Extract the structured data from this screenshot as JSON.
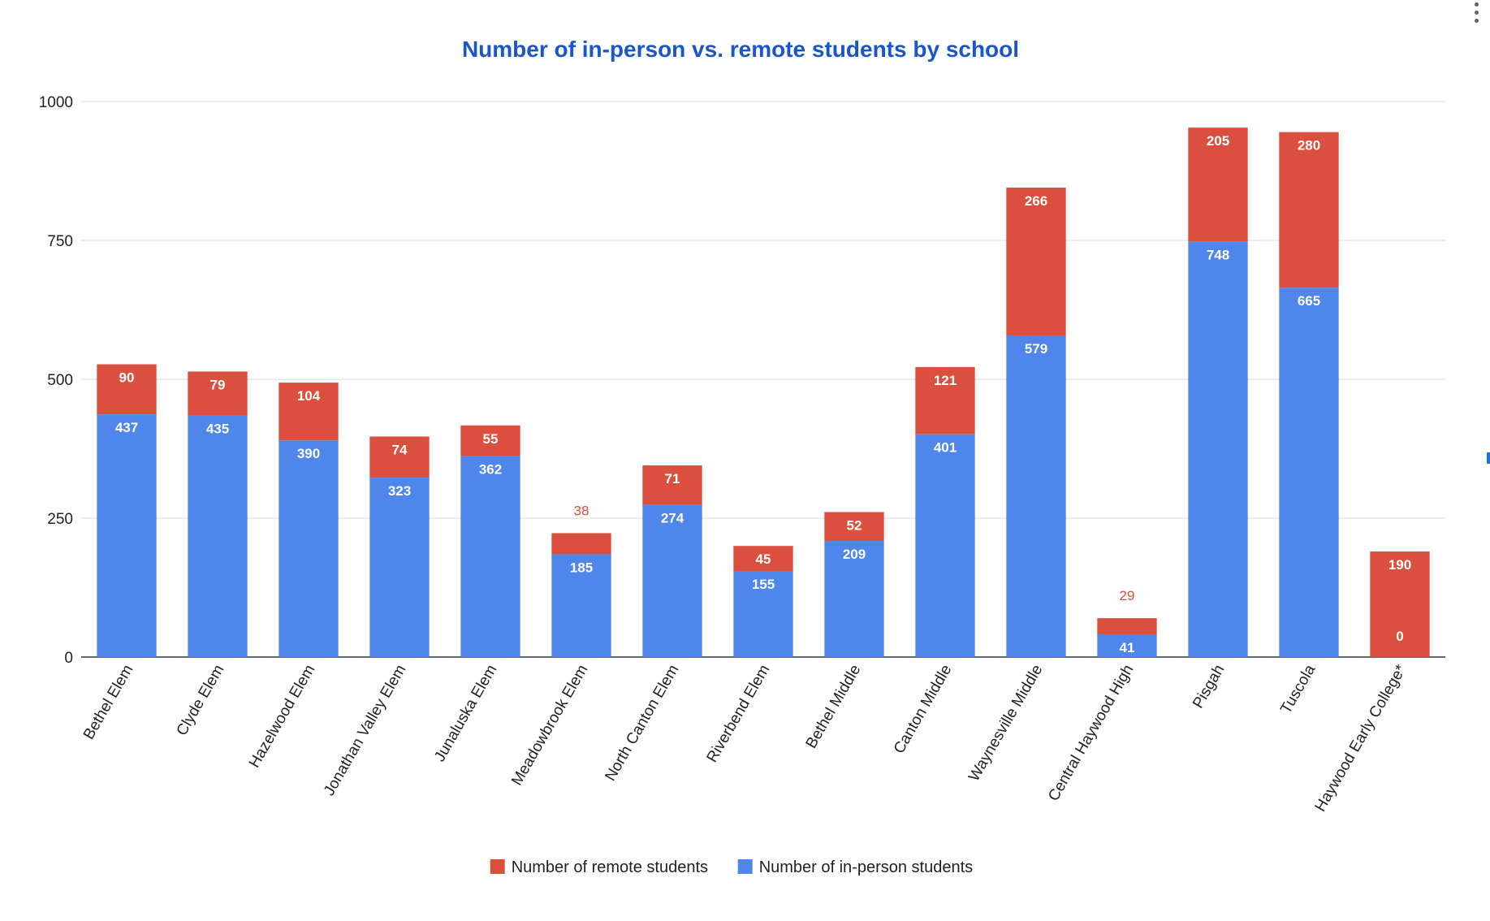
{
  "colors": {
    "title": "#1a56c8",
    "in_person": "#4f86ec",
    "remote": "#db4f3f",
    "grid": "#d9d9d9",
    "axis": "#333333",
    "text": "#222222",
    "label_on_bar": "#ffffff"
  },
  "menu": {
    "icon": "more-vert-icon"
  },
  "chart_data": {
    "type": "bar",
    "stacked": true,
    "title": "Number of in-person vs. remote students by school",
    "xlabel": "",
    "ylabel": "",
    "ylim": [
      0,
      1000
    ],
    "yticks": [
      "0",
      "250",
      "500",
      "750",
      "1000"
    ],
    "grid": true,
    "legend_position": "bottom",
    "categories": [
      "Bethel Elem",
      "Clyde Elem",
      "Hazelwood Elem",
      "Jonathan Valley Elem",
      "Junaluska Elem",
      "Meadowbrook Elem",
      "North Canton Elem",
      "Riverbend Elem",
      "Bethel Middle",
      "Canton Middle",
      "Waynesville Middle",
      "Central Haywood High",
      "Pisgah",
      "Tuscola",
      "Haywood Early College*"
    ],
    "legend": [
      "Number of remote students",
      "Number of in-person students"
    ],
    "series": [
      {
        "name": "Number of in-person students",
        "values": [
          437,
          435,
          390,
          323,
          362,
          185,
          274,
          155,
          209,
          401,
          579,
          41,
          748,
          665,
          0
        ]
      },
      {
        "name": "Number of remote students",
        "values": [
          90,
          79,
          104,
          74,
          55,
          38,
          71,
          45,
          52,
          121,
          266,
          29,
          205,
          280,
          190
        ]
      }
    ]
  }
}
